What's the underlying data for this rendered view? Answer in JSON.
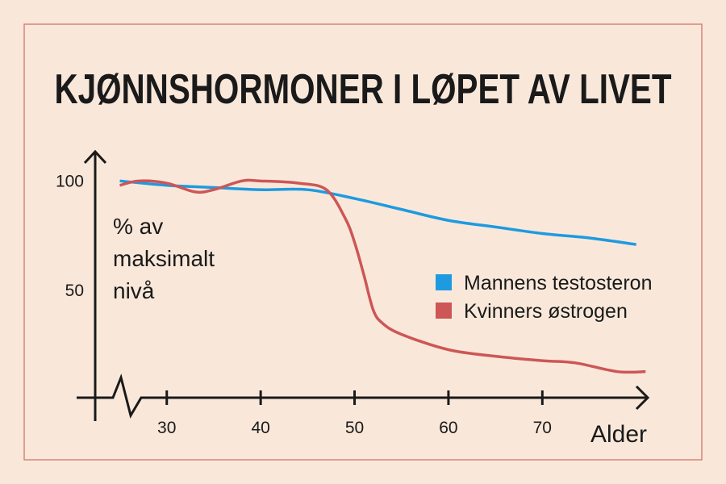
{
  "chart_data": {
    "type": "line",
    "title": "KJØNNSHORMONER I LØPET AV LIVET",
    "xlabel": "Alder",
    "ylabel": [
      "% av",
      "maksimalt",
      "nivå"
    ],
    "xlim": [
      20.4,
      81.4
    ],
    "ylim": [
      0,
      113
    ],
    "xticks": [
      30,
      40,
      50,
      60,
      70
    ],
    "yticks": [
      50,
      100
    ],
    "legend": "right",
    "series": [
      {
        "name": "Mannens testosteron",
        "color": "#1e9ae0",
        "x": [
          25,
          30,
          35,
          40,
          45,
          50,
          55,
          60,
          65,
          70,
          75,
          80
        ],
        "values": [
          100,
          98,
          97,
          96,
          96,
          92,
          87,
          82,
          79,
          76,
          74,
          71
        ]
      },
      {
        "name": "Kvinners østrogen",
        "color": "#cd5657",
        "x": [
          25,
          27,
          30,
          33,
          35,
          38,
          40,
          44,
          47,
          49,
          50,
          51,
          52,
          53,
          55,
          60,
          65,
          70,
          73.5,
          78,
          81
        ],
        "values": [
          98,
          100,
          99,
          95,
          96,
          100,
          100,
          99,
          96,
          83,
          72,
          57,
          41,
          35,
          30,
          23,
          20,
          18,
          17,
          13,
          13
        ]
      }
    ]
  }
}
